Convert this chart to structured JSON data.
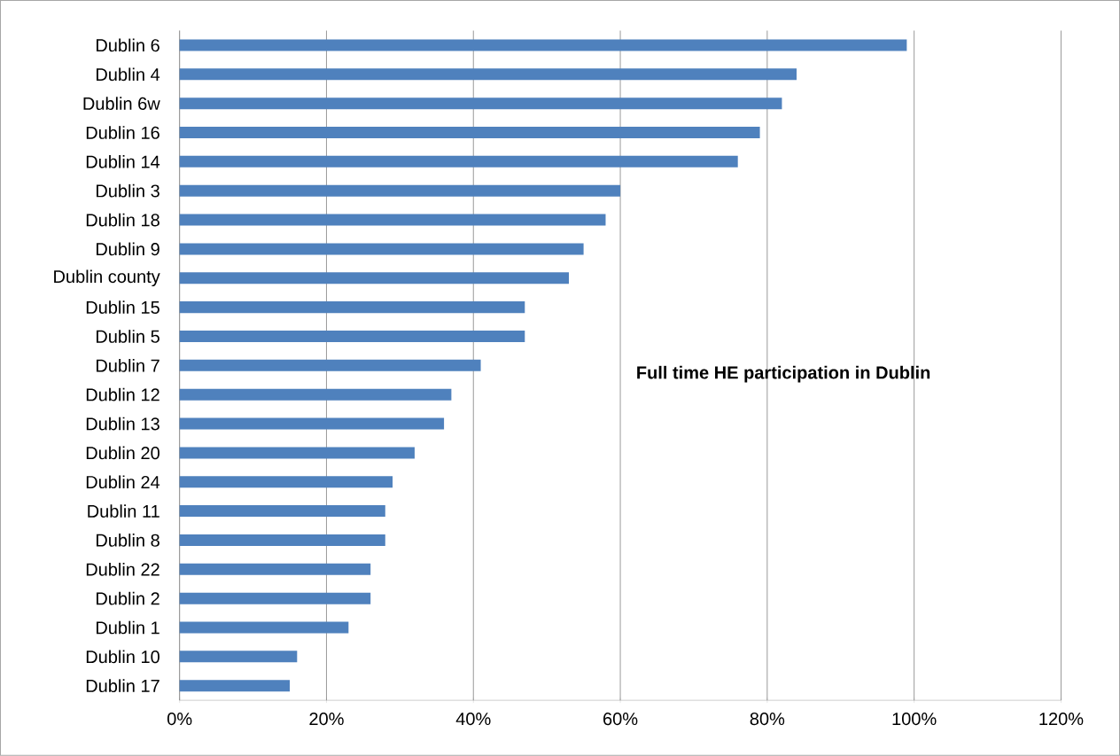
{
  "chart_data": {
    "type": "bar",
    "orientation": "horizontal",
    "title": "Full time HE participation in Dublin",
    "categories": [
      "Dublin 6",
      "Dublin 4",
      "Dublin 6w",
      "Dublin 16",
      "Dublin 14",
      "Dublin 3",
      "Dublin 18",
      "Dublin 9",
      "Dublin county",
      "Dublin 15",
      "Dublin 5",
      "Dublin 7",
      "Dublin 12",
      "Dublin 13",
      "Dublin 20",
      "Dublin 24",
      "Dublin 11",
      "Dublin 8",
      "Dublin 22",
      "Dublin 2",
      "Dublin 1",
      "Dublin 10",
      "Dublin 17"
    ],
    "values": [
      99,
      84,
      82,
      79,
      76,
      60,
      58,
      55,
      53,
      47,
      47,
      41,
      37,
      36,
      32,
      29,
      28,
      28,
      26,
      26,
      23,
      16,
      15
    ],
    "color": "#4f81bd",
    "xlim": [
      0,
      120
    ],
    "xticks": [
      {
        "value": 0,
        "label": "0%"
      },
      {
        "value": 20,
        "label": "20%"
      },
      {
        "value": 40,
        "label": "40%"
      },
      {
        "value": 60,
        "label": "60%"
      },
      {
        "value": 80,
        "label": "80%"
      },
      {
        "value": 100,
        "label": "100%"
      },
      {
        "value": 120,
        "label": "120%"
      }
    ],
    "grid": "x"
  }
}
